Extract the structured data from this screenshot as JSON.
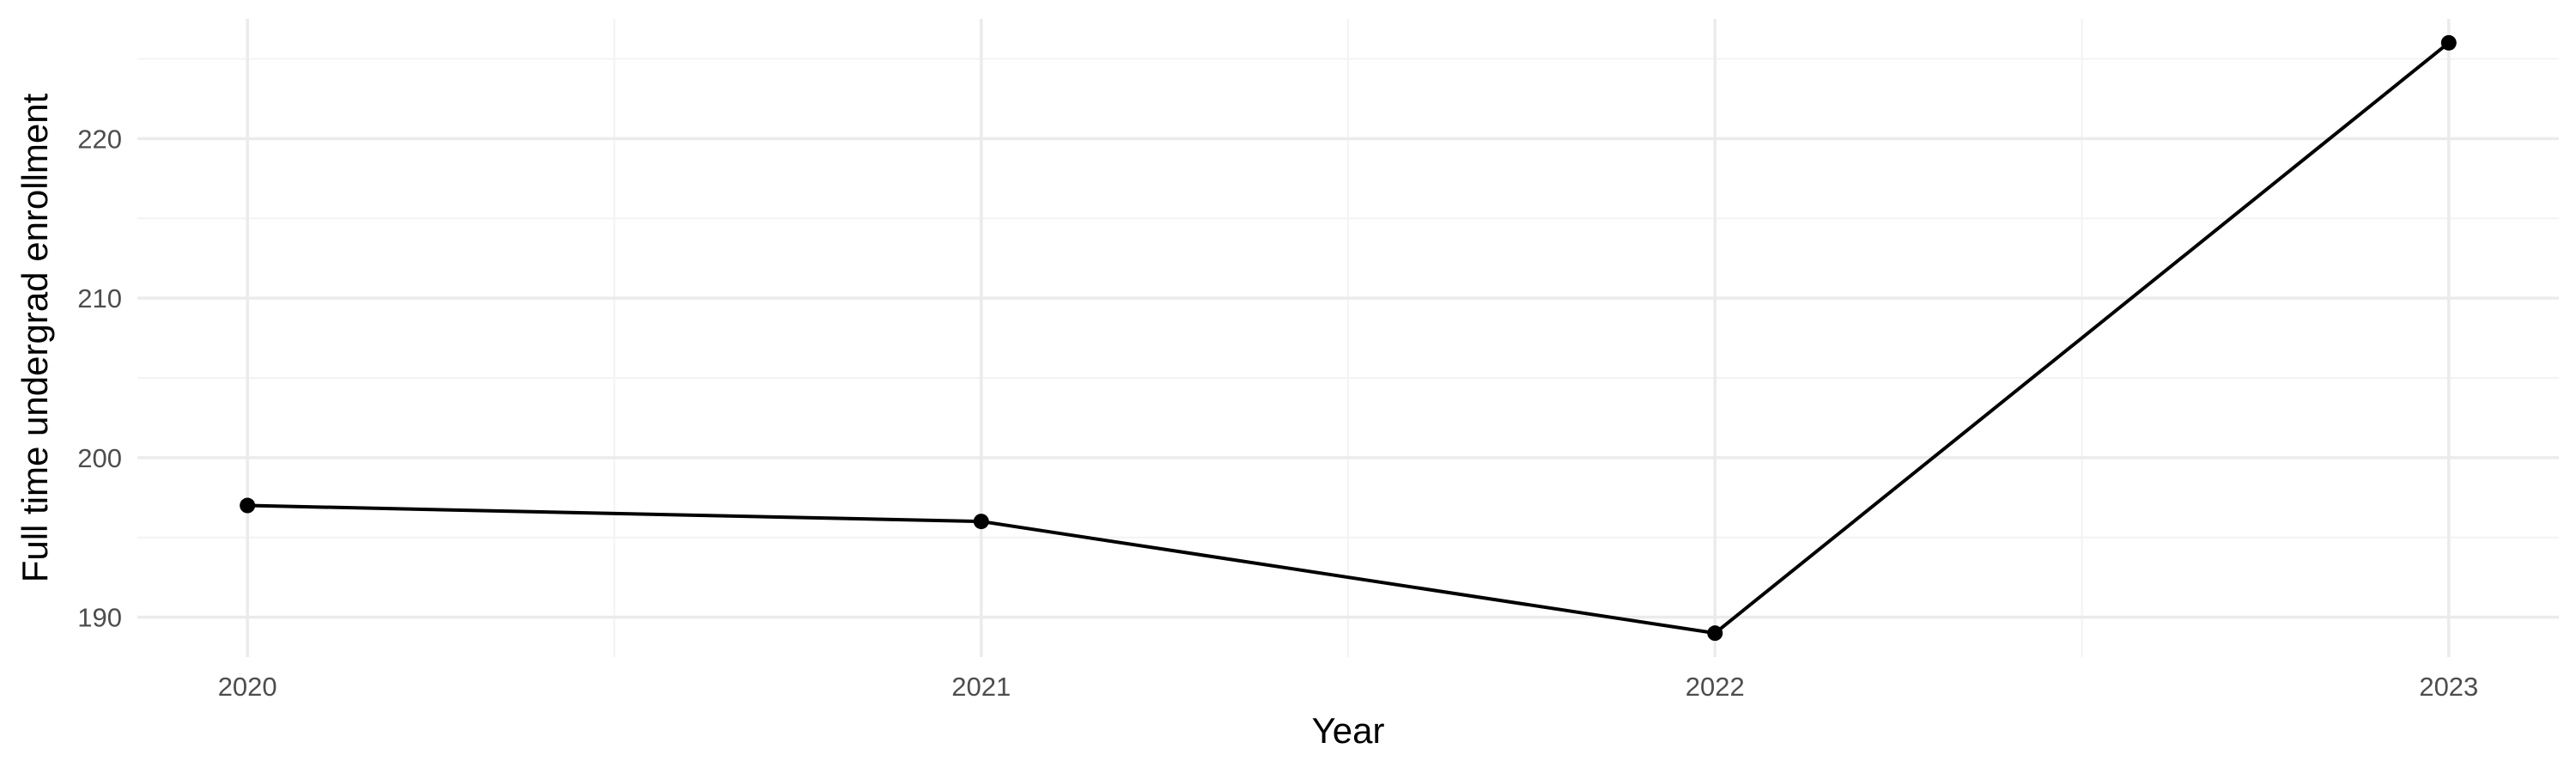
{
  "chart_data": {
    "type": "line",
    "title": "",
    "xlabel": "Year",
    "ylabel": "Full time undergrad enrollment",
    "x": [
      2020,
      2021,
      2022,
      2023
    ],
    "series": [
      {
        "values": [
          197,
          196,
          189,
          226
        ]
      }
    ],
    "x_ticks": [
      "2020",
      "2021",
      "2022",
      "2023"
    ],
    "y_ticks": [
      190,
      200,
      210,
      220
    ],
    "xlim": [
      2019.85,
      2023.15
    ],
    "ylim": [
      187.5,
      227.5
    ],
    "grid": true,
    "legend": "none",
    "colors": {
      "line": "#000000",
      "point": "#000000",
      "grid_major": "#ebebeb",
      "grid_minor": "#f3f3f3",
      "tick_text": "#4d4d4d",
      "axis_title": "#000000"
    }
  }
}
